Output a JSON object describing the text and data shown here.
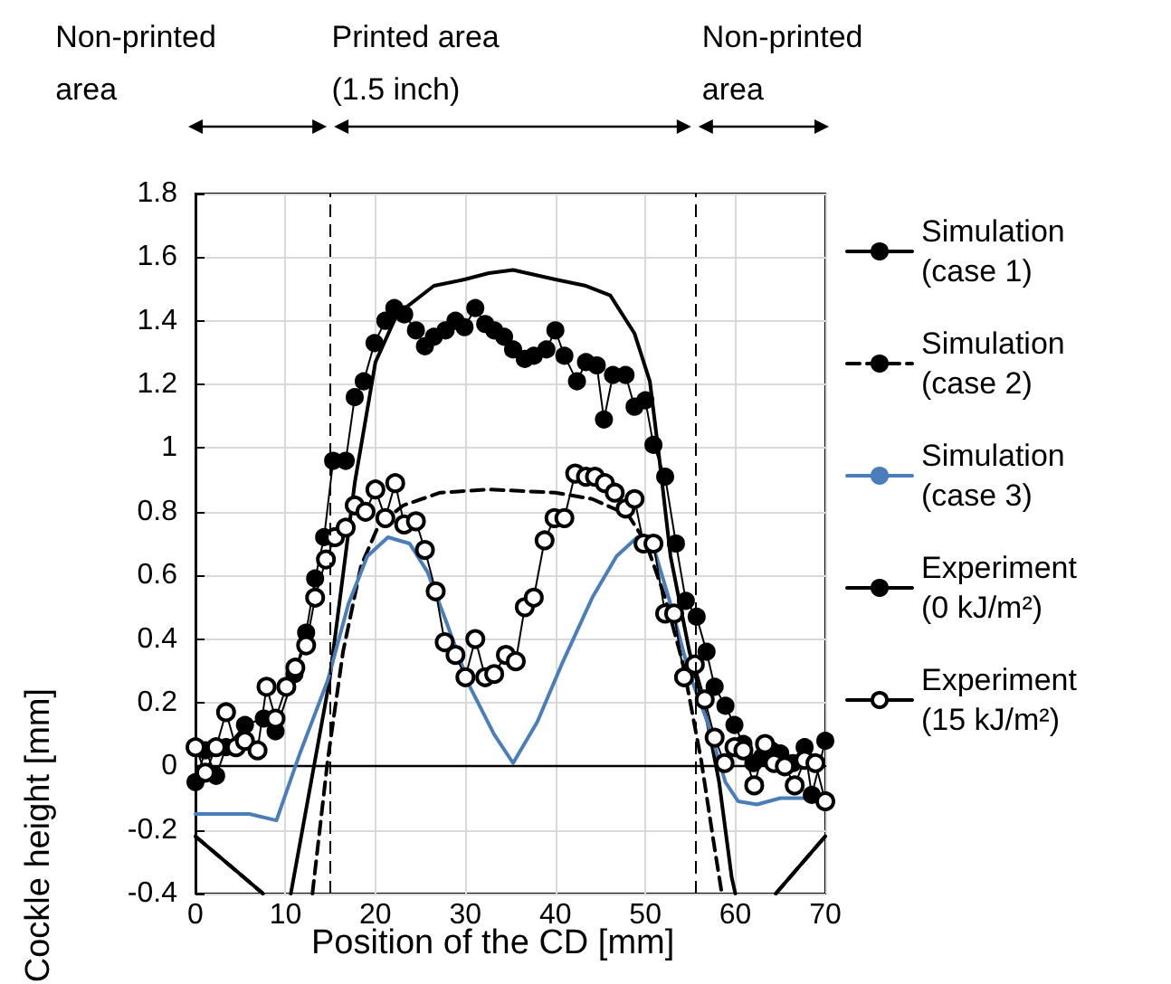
{
  "chart_data": {
    "type": "line",
    "xlabel": "Position of the CD [mm]",
    "ylabel": "Cockle height [mm]",
    "xlim": [
      0,
      70
    ],
    "xticks": [
      0,
      10,
      20,
      30,
      40,
      50,
      60,
      70
    ],
    "ylim": [
      -0.4,
      1.8
    ],
    "yticks": [
      -0.4,
      -0.2,
      0,
      0.2,
      0.4,
      0.6,
      0.8,
      1,
      1.2,
      1.4,
      1.6,
      1.8
    ],
    "grid": true,
    "legend": "right",
    "annotations": [
      "Non-printed area",
      "Printed area (1.5 inch)",
      "Non-printed area"
    ],
    "ref_lines": [
      {
        "axis": "x",
        "value": 15,
        "label": null,
        "color": "#000000",
        "line_style": "dashed"
      },
      {
        "axis": "x",
        "value": 55.5,
        "label": null,
        "color": "#000000",
        "line_style": "dashed"
      }
    ],
    "series": [
      {
        "name": "Simulation (case 1)",
        "color": "#000000",
        "line_style": "solid",
        "marker": "none",
        "x": [
          0,
          7.5,
          9,
          10.6,
          14.9,
          17.7,
          20,
          22.4,
          26.5,
          29.9,
          32.6,
          35.3,
          40,
          43.4,
          46.1,
          48.8,
          50.5,
          51.5,
          52.8,
          54.9,
          56.9,
          58.2,
          59.6,
          60,
          62,
          64.5,
          70
        ],
        "values": [
          -0.22,
          -0.4,
          null,
          -0.4,
          0.27,
          0.89,
          1.27,
          1.42,
          1.51,
          1.53,
          1.55,
          1.56,
          1.53,
          1.51,
          1.48,
          1.36,
          1.21,
          0.98,
          0.66,
          0.36,
          0.14,
          -0.05,
          -0.35,
          -0.4,
          null,
          -0.4,
          -0.22
        ]
      },
      {
        "name": "Simulation (case 2)",
        "color": "#000000",
        "line_style": "dashed",
        "marker": "none",
        "x": [
          0,
          7.5,
          10,
          13,
          14.7,
          16.4,
          18.4,
          20.4,
          23.1,
          27.2,
          32.6,
          40,
          44.1,
          48.1,
          50.1,
          52.2,
          54.2,
          56.2,
          57.6,
          58.5,
          62,
          64.5,
          70
        ],
        "values": [
          -0.22,
          -0.4,
          null,
          -0.4,
          0.02,
          0.36,
          0.63,
          0.76,
          0.82,
          0.86,
          0.87,
          0.86,
          0.84,
          0.79,
          0.7,
          0.53,
          0.32,
          0.02,
          -0.24,
          -0.4,
          null,
          -0.4,
          -0.22
        ]
      },
      {
        "name": "Simulation (case 3)",
        "color": "#4a7ebb",
        "line_style": "solid",
        "marker": "none",
        "x": [
          0,
          6,
          9,
          11.6,
          14.7,
          17,
          19.1,
          21.4,
          23.8,
          25.8,
          27.8,
          30.5,
          33.2,
          35.3,
          38,
          40.7,
          44.1,
          46.8,
          49.1,
          50.8,
          52.8,
          54.9,
          56.9,
          58.9,
          60.3,
          62.4,
          65,
          70
        ],
        "values": [
          -0.15,
          -0.15,
          -0.17,
          0.04,
          0.27,
          0.51,
          0.66,
          0.72,
          0.7,
          0.61,
          0.46,
          0.25,
          0.1,
          0.01,
          0.14,
          0.32,
          0.53,
          0.66,
          0.72,
          0.7,
          0.51,
          0.29,
          0.14,
          -0.05,
          -0.11,
          -0.12,
          -0.1,
          -0.1
        ]
      },
      {
        "name": "Experiment (0 kJ/m²)",
        "color": "#000000",
        "line_style": "solid",
        "marker": "circle",
        "x": [
          0,
          1.1,
          2.3,
          3.4,
          5.5,
          7.6,
          8.9,
          11,
          12.3,
          13.3,
          14.3,
          15.3,
          16.7,
          17.7,
          18.7,
          19.9,
          21.1,
          22.1,
          23.2,
          24.5,
          25.5,
          26.5,
          27.8,
          28.9,
          29.9,
          31.1,
          32.2,
          33.2,
          34.3,
          35.3,
          36.6,
          37.6,
          39,
          40,
          41,
          42.4,
          43.4,
          44.6,
          45.4,
          46.4,
          47.8,
          48.8,
          50,
          50.9,
          52.2,
          53.4,
          54.5,
          55.7,
          56.8,
          57.7,
          58.9,
          59.9,
          60.9,
          62,
          63,
          64,
          65,
          66.4,
          67.7,
          68.5,
          70
        ],
        "values": [
          -0.05,
          0.05,
          -0.03,
          0.06,
          0.13,
          0.15,
          0.11,
          0.29,
          0.42,
          0.59,
          0.72,
          0.96,
          0.96,
          1.16,
          1.21,
          1.33,
          1.4,
          1.44,
          1.42,
          1.37,
          1.32,
          1.35,
          1.37,
          1.4,
          1.38,
          1.44,
          1.39,
          1.37,
          1.35,
          1.31,
          1.28,
          1.29,
          1.31,
          1.37,
          1.29,
          1.21,
          1.27,
          1.26,
          1.09,
          1.23,
          1.23,
          1.13,
          1.15,
          1.01,
          0.91,
          0.7,
          0.52,
          0.47,
          0.36,
          0.25,
          0.19,
          0.13,
          0.07,
          0.01,
          0.03,
          0.05,
          0.04,
          0.01,
          0.06,
          -0.09,
          0.08
        ]
      },
      {
        "name": "Experiment (15 kJ/m²)",
        "color": "#000000",
        "line_style": "solid",
        "marker": "open circle",
        "x": [
          0,
          1.1,
          2.3,
          3.4,
          4.5,
          5.5,
          6.9,
          7.9,
          8.9,
          10.1,
          11.1,
          12.3,
          13.3,
          14.5,
          15.5,
          16.7,
          17.7,
          18.9,
          20,
          21.1,
          22.2,
          23.2,
          24.5,
          25.5,
          26.7,
          27.7,
          28.9,
          30,
          31.1,
          32.2,
          33.2,
          34.5,
          35.6,
          36.6,
          37.6,
          38.8,
          39.9,
          41,
          42.2,
          43.4,
          44.4,
          45.5,
          46.6,
          47.8,
          48.8,
          49.8,
          50.9,
          52.2,
          53.2,
          54.3,
          55.5,
          56.6,
          57.7,
          58.8,
          59.9,
          60.9,
          62.1,
          63.3,
          64.3,
          65.5,
          66.6,
          67.7,
          68.9,
          70
        ],
        "values": [
          0.06,
          -0.02,
          0.06,
          0.17,
          0.06,
          0.08,
          0.05,
          0.25,
          0.15,
          0.25,
          0.31,
          0.38,
          0.53,
          0.65,
          0.72,
          0.75,
          0.82,
          0.8,
          0.87,
          0.78,
          0.89,
          0.76,
          0.77,
          0.68,
          0.55,
          0.39,
          0.35,
          0.28,
          0.4,
          0.28,
          0.29,
          0.35,
          0.33,
          0.5,
          0.53,
          0.71,
          0.78,
          0.78,
          0.92,
          0.91,
          0.91,
          0.89,
          0.86,
          0.81,
          0.84,
          0.7,
          0.7,
          0.48,
          0.48,
          0.28,
          0.32,
          0.21,
          0.09,
          0.01,
          0.06,
          0.05,
          -0.06,
          0.07,
          0.01,
          0,
          -0.06,
          0.02,
          0.01,
          -0.11
        ]
      }
    ]
  }
}
